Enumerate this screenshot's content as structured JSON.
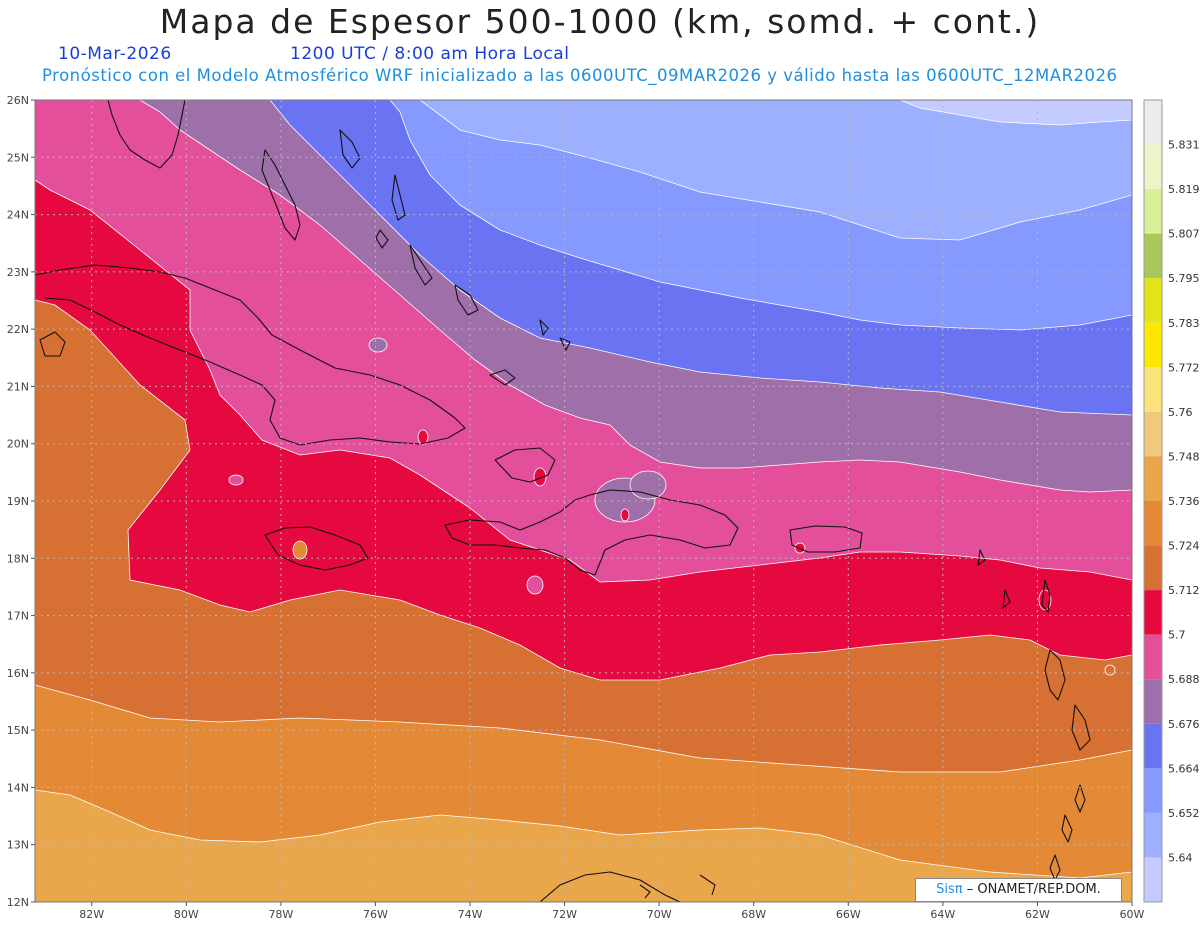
{
  "header": {
    "title": "Mapa de Espesor 500-1000 (km, somd. + cont.)",
    "date": "10-Mar-2026",
    "time": "1200 UTC / 8:00 am Hora Local",
    "forecast": "Pronóstico con el Modelo Atmosférico WRF inicializado a las 0600UTC_09MAR2026 y válido hasta las  0600UTC_12MAR2026"
  },
  "map": {
    "lat_labels": [
      "26N",
      "25N",
      "24N",
      "23N",
      "22N",
      "21N",
      "20N",
      "19N",
      "18N",
      "17N",
      "16N",
      "15N",
      "14N",
      "13N",
      "12N"
    ],
    "lon_labels": [
      "82W",
      "80W",
      "78W",
      "76W",
      "74W",
      "72W",
      "70W",
      "68W",
      "66W",
      "64W",
      "62W",
      "60W"
    ],
    "lat_range": [
      12,
      26
    ],
    "lon_range": [
      -83.2,
      -60
    ],
    "grid": true
  },
  "legend": {
    "levels": [
      "5.64",
      "5.652",
      "5.664",
      "5.676",
      "5.688",
      "5.7",
      "5.712",
      "5.724",
      "5.736",
      "5.748",
      "5.76",
      "5.772",
      "5.783",
      "5.795",
      "5.807",
      "5.819",
      "5.831"
    ],
    "colors": [
      "#c4ccff",
      "#9db0ff",
      "#8599ff",
      "#6a73f2",
      "#9e6fa8",
      "#e44f9c",
      "#e6093f",
      "#d77033",
      "#e48a36",
      "#eaa64b",
      "#f0ca7a",
      "#fbe47a",
      "#fce800",
      "#e3e317",
      "#a8c95a",
      "#dbef98",
      "#eef4c8",
      "#ececec"
    ]
  },
  "credit": {
    "sis": "Sisπ",
    "org": "– ONAMET/REP.DOM."
  },
  "bands": {
    "b5736": "#eaa64b",
    "b5724": "#e48a36",
    "b5712": "#d77033",
    "b5700": "#e6093f",
    "b5688": "#e44f9c",
    "b5676": "#9e6fa8",
    "b5664": "#6a73f2",
    "b5652": "#8599ff",
    "b5640": "#9db0ff",
    "b5628": "#c4ccff"
  }
}
